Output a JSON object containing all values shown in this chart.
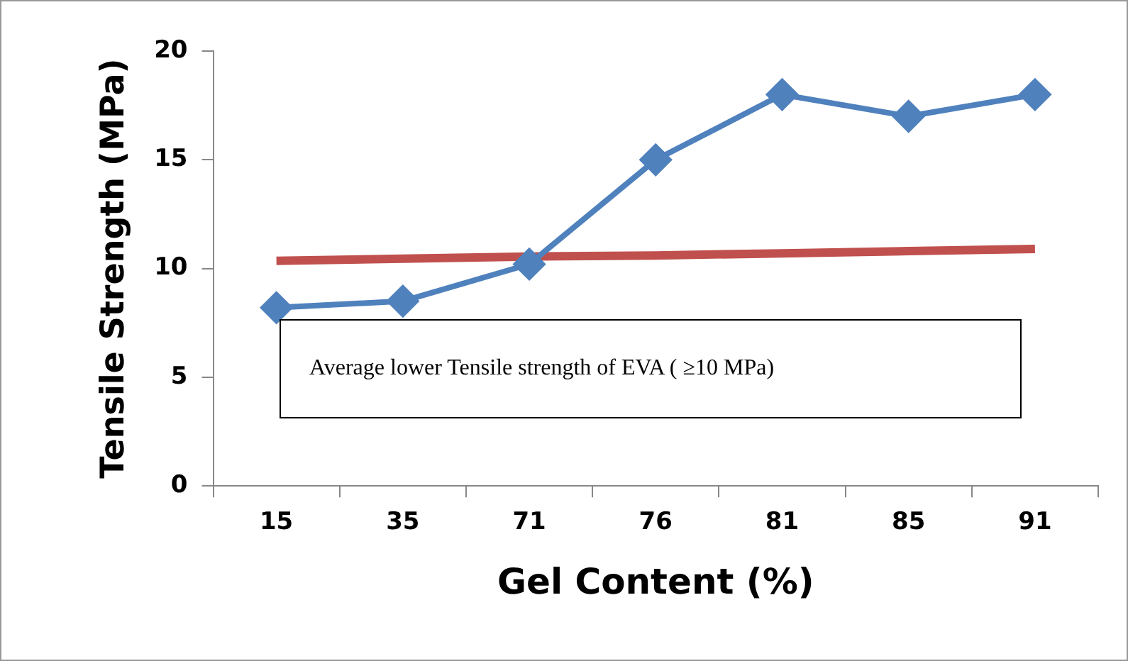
{
  "chart_data": {
    "type": "line",
    "xlabel": "Gel Content (%)",
    "ylabel": "Tensile Strength (MPa)",
    "categories": [
      "15",
      "35",
      "71",
      "76",
      "81",
      "85",
      "91"
    ],
    "series": [
      {
        "color": "#4f81bd",
        "marker": "diamond",
        "values": [
          8.2,
          8.5,
          10.2,
          15,
          18,
          17,
          18
        ]
      },
      {
        "color": "#c0504d",
        "marker": "none",
        "values": [
          10.35,
          10.45,
          10.55,
          10.6,
          10.7,
          10.8,
          10.9
        ]
      }
    ],
    "ylim": [
      0,
      20
    ],
    "yticks": [
      0,
      5,
      10,
      15,
      20
    ],
    "grid": false,
    "legend": false,
    "annotations": [
      "Average lower Tensile strength of EVA ( ≥10 MPa)"
    ]
  }
}
